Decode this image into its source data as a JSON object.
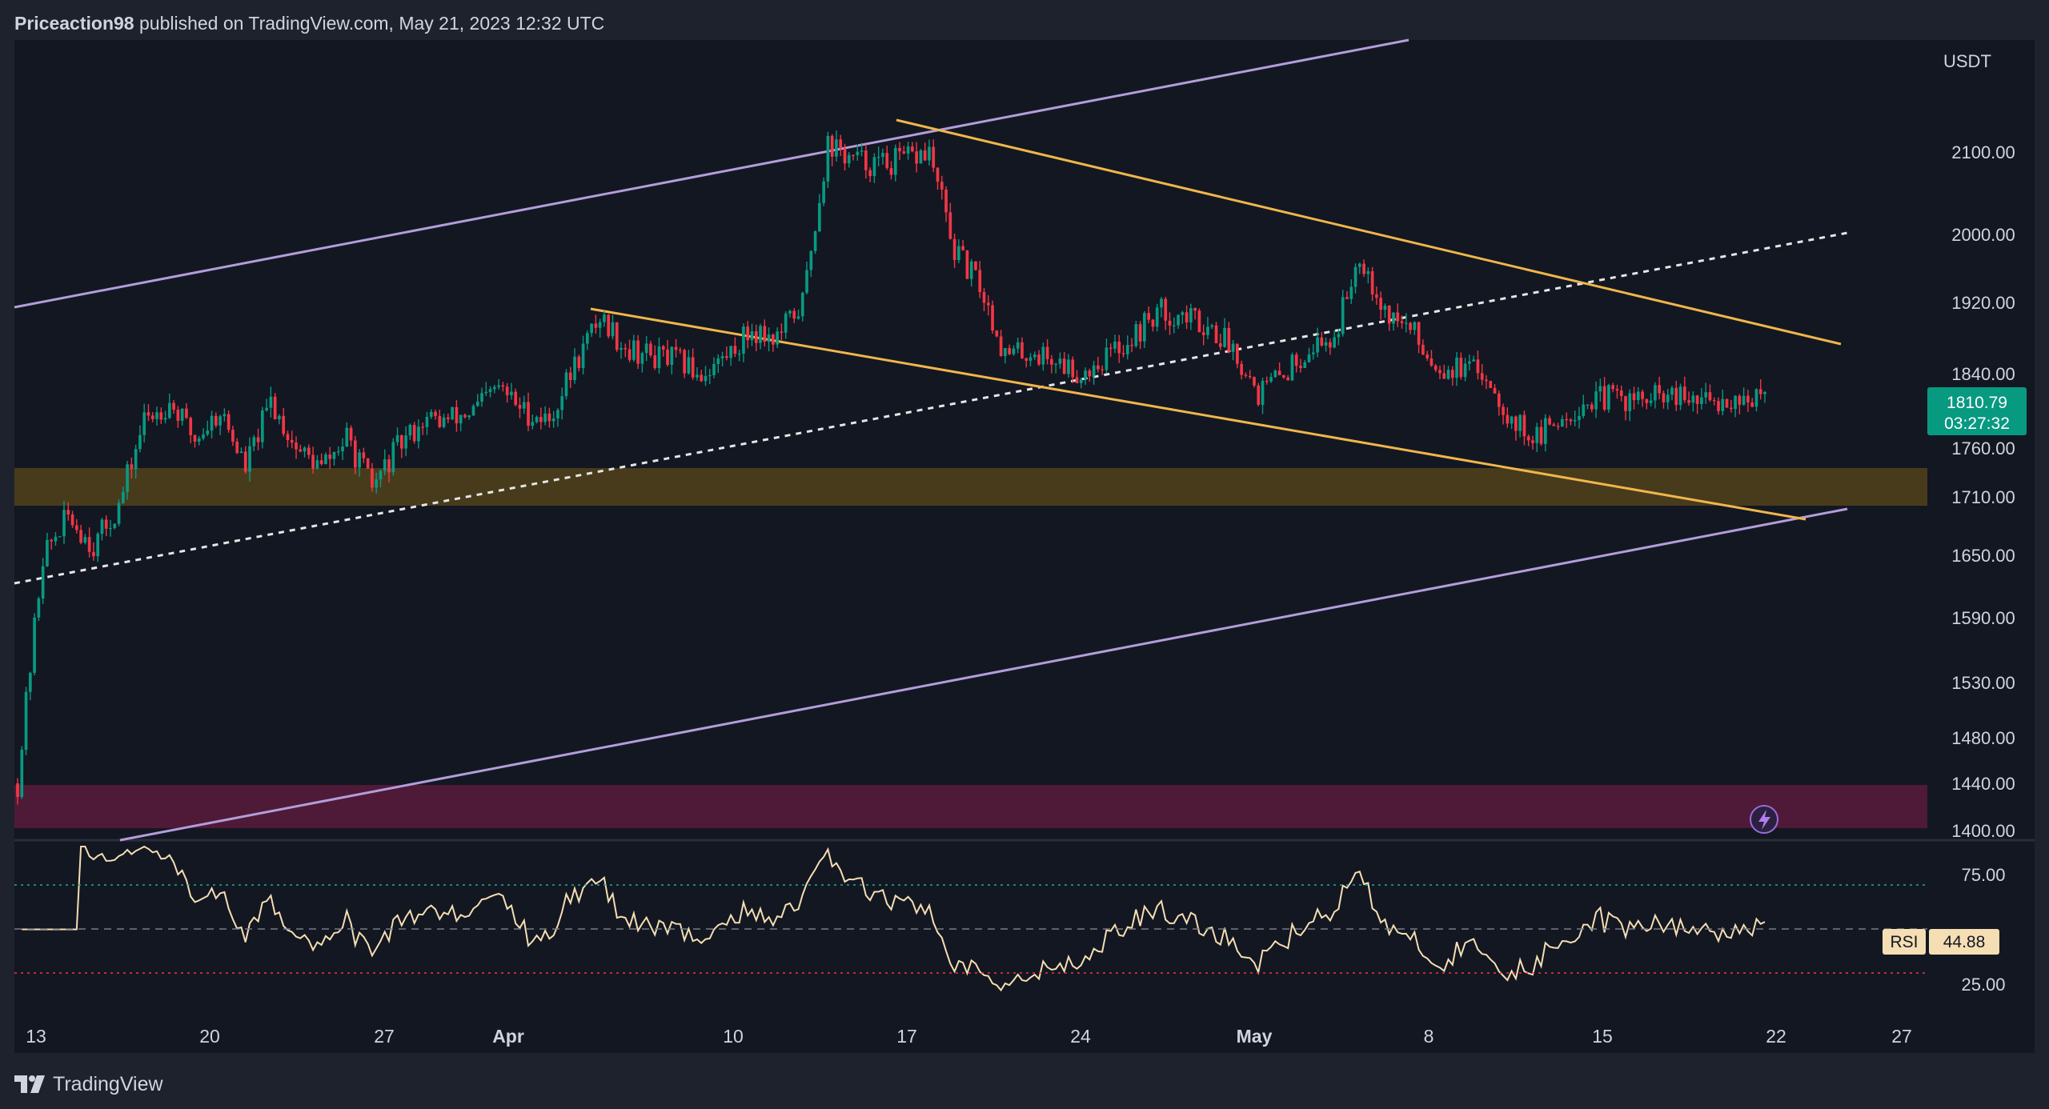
{
  "header": {
    "author": "Priceaction98",
    "published_text": "published on TradingView.com, May 21, 2023 12:32 UTC"
  },
  "price_panel": {
    "currency": "USDT",
    "y_ticks": [
      "2100.00",
      "2000.00",
      "1920.00",
      "1840.00",
      "1760.00",
      "1710.00",
      "1650.00",
      "1590.00",
      "1530.00",
      "1480.00",
      "1440.00",
      "1400.00"
    ],
    "last_price": "1810.79",
    "countdown": "03:27:32",
    "last_price_color": "#089981"
  },
  "rsi_panel": {
    "label": "RSI",
    "value": "44.88",
    "y_ticks": [
      "75.00",
      "25.00"
    ],
    "line_color": "#f5deb3"
  },
  "x_axis": {
    "ticks": [
      "13",
      "20",
      "27",
      "Apr",
      "10",
      "17",
      "24",
      "May",
      "8",
      "15",
      "22",
      "27"
    ]
  },
  "footer": {
    "brand": "TradingView"
  },
  "colors": {
    "background": "#131722",
    "frame": "#1e222d",
    "up_candle": "#089981",
    "down_candle": "#f23645",
    "channel_lines": "#b39ddb",
    "wedge_lines": "#f0b64b",
    "support_zone": "#4d3f1c",
    "demand_zone": "#541b3a"
  },
  "chart_data": [
    {
      "type": "candlestick",
      "title": "",
      "xlabel": "",
      "ylabel": "USDT",
      "x_ticks": [
        "13",
        "20",
        "27",
        "Apr",
        "10",
        "17",
        "24",
        "May",
        "8",
        "15",
        "22",
        "27"
      ],
      "y_ticks": [
        2100,
        2000,
        1920,
        1840,
        1760,
        1710,
        1650,
        1590,
        1530,
        1480,
        1440,
        1400
      ],
      "path_points": [
        [
          "Mar 13",
          1440
        ],
        [
          "Mar 14",
          1650
        ],
        [
          "Mar 15",
          1690
        ],
        [
          "Mar 16",
          1660
        ],
        [
          "Mar 17",
          1700
        ],
        [
          "Mar 18",
          1790
        ],
        [
          "Mar 19",
          1810
        ],
        [
          "Mar 20",
          1770
        ],
        [
          "Mar 21",
          1800
        ],
        [
          "Mar 22",
          1740
        ],
        [
          "Mar 23",
          1810
        ],
        [
          "Mar 24",
          1760
        ],
        [
          "Mar 25",
          1740
        ],
        [
          "Mar 26",
          1770
        ],
        [
          "Mar 27",
          1720
        ],
        [
          "Mar 28",
          1760
        ],
        [
          "Mar 29",
          1790
        ],
        [
          "Mar 30",
          1790
        ],
        [
          "Mar 31",
          1800
        ],
        [
          "Apr 01",
          1825
        ],
        [
          "Apr 02",
          1800
        ],
        [
          "Apr 03",
          1790
        ],
        [
          "Apr 04",
          1850
        ],
        [
          "Apr 05",
          1905
        ],
        [
          "Apr 06",
          1870
        ],
        [
          "Apr 07",
          1860
        ],
        [
          "Apr 08",
          1855
        ],
        [
          "Apr 09",
          1840
        ],
        [
          "Apr 10",
          1860
        ],
        [
          "Apr 11",
          1890
        ],
        [
          "Apr 12",
          1880
        ],
        [
          "Apr 13",
          1920
        ],
        [
          "Apr 14",
          2110
        ],
        [
          "Apr 15",
          2090
        ],
        [
          "Apr 16",
          2085
        ],
        [
          "Apr 17",
          2090
        ],
        [
          "Apr 18",
          2100
        ],
        [
          "Apr 19",
          1980
        ],
        [
          "Apr 20",
          1940
        ],
        [
          "Apr 21",
          1860
        ],
        [
          "Apr 22",
          1865
        ],
        [
          "Apr 23",
          1855
        ],
        [
          "Apr 24",
          1840
        ],
        [
          "Apr 25",
          1860
        ],
        [
          "Apr 26",
          1880
        ],
        [
          "Apr 27",
          1910
        ],
        [
          "Apr 28",
          1905
        ],
        [
          "Apr 29",
          1895
        ],
        [
          "Apr 30",
          1870
        ],
        [
          "May 01",
          1820
        ],
        [
          "May 02",
          1840
        ],
        [
          "May 03",
          1870
        ],
        [
          "May 04",
          1880
        ],
        [
          "May 05",
          1980
        ],
        [
          "May 06",
          1910
        ],
        [
          "May 07",
          1890
        ],
        [
          "May 08",
          1850
        ],
        [
          "May 09",
          1845
        ],
        [
          "May 10",
          1840
        ],
        [
          "May 11",
          1790
        ],
        [
          "May 12",
          1770
        ],
        [
          "May 13",
          1795
        ],
        [
          "May 14",
          1810
        ],
        [
          "May 15",
          1815
        ],
        [
          "May 16",
          1810
        ],
        [
          "May 17",
          1815
        ],
        [
          "May 18",
          1810
        ],
        [
          "May 19",
          1810
        ],
        [
          "May 20",
          1815
        ],
        [
          "May 21",
          1810.79
        ]
      ],
      "last_price": 1810.79
    },
    {
      "type": "line",
      "title": "",
      "series": [
        {
          "name": "RSI",
          "last_value": 44.88
        }
      ],
      "y_ticks": [
        75,
        25
      ]
    }
  ]
}
